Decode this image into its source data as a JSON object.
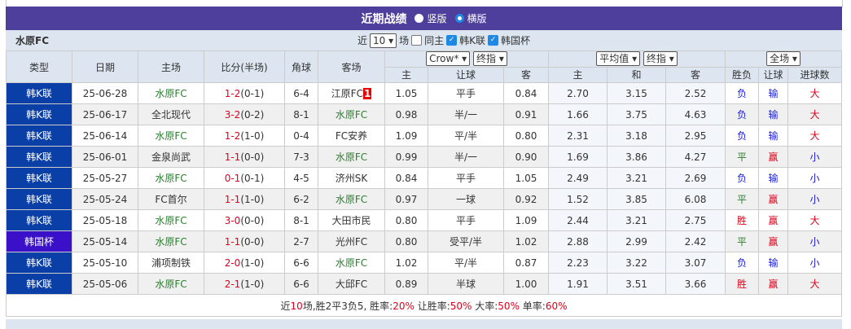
{
  "title": "近期战绩",
  "layout_options": [
    {
      "label": "竖版",
      "selected": false
    },
    {
      "label": "横版",
      "selected": true
    }
  ],
  "team": "水原FC",
  "filter": {
    "prefix": "近",
    "count": "10",
    "suffix": "场",
    "checkboxes": [
      {
        "label": "同主",
        "checked": false
      },
      {
        "label": "韩K联",
        "checked": true
      },
      {
        "label": "韩国杯",
        "checked": true
      }
    ]
  },
  "selects": {
    "company": "Crow*",
    "asian_type": "终指",
    "euro_company": "平均值",
    "euro_type": "终指",
    "period": "全场"
  },
  "headers": {
    "type": "类型",
    "date": "日期",
    "home": "主场",
    "score": "比分(半场)",
    "corner": "角球",
    "away": "客场",
    "a_home": "主",
    "a_line": "让球",
    "a_away": "客",
    "e_home": "主",
    "e_draw": "和",
    "e_away": "客",
    "result": "胜负",
    "handicap": "让球",
    "goals": "进球数"
  },
  "colors": {
    "title_bg": "#4e3f9c",
    "league_bg": "#0b3fa8",
    "cup_bg": "#3a10c8"
  },
  "rows": [
    {
      "type": "韩K联",
      "date": "25-06-28",
      "home": "水原FC",
      "score": "1-2",
      "half": "(0-1)",
      "corner": "6-4",
      "away": "江原FC",
      "away_flag": "1",
      "ah": "1.05",
      "al": "平手",
      "aa": "0.84",
      "eh": "2.70",
      "ed": "3.15",
      "ea": "2.52",
      "res": "负",
      "hc": "输",
      "gl": "大"
    },
    {
      "type": "韩K联",
      "date": "25-06-17",
      "home": "全北现代",
      "score": "3-2",
      "half": "(0-2)",
      "corner": "8-1",
      "away": "水原FC",
      "ah": "0.98",
      "al": "半/一",
      "aa": "0.91",
      "eh": "1.66",
      "ed": "3.75",
      "ea": "4.63",
      "res": "负",
      "hc": "输",
      "gl": "大"
    },
    {
      "type": "韩K联",
      "date": "25-06-14",
      "home": "水原FC",
      "score": "1-2",
      "half": "(1-0)",
      "corner": "0-4",
      "away": "FC安养",
      "ah": "1.09",
      "al": "平/半",
      "aa": "0.80",
      "eh": "2.31",
      "ed": "3.18",
      "ea": "2.95",
      "res": "负",
      "hc": "输",
      "gl": "大"
    },
    {
      "type": "韩K联",
      "date": "25-06-01",
      "home": "金泉尚武",
      "score": "1-1",
      "half": "(0-0)",
      "corner": "7-3",
      "away": "水原FC",
      "ah": "0.99",
      "al": "半/一",
      "aa": "0.90",
      "eh": "1.69",
      "ed": "3.86",
      "ea": "4.27",
      "res": "平",
      "hc": "赢",
      "gl": "小"
    },
    {
      "type": "韩K联",
      "date": "25-05-27",
      "home": "水原FC",
      "score": "0-1",
      "half": "(0-1)",
      "corner": "4-5",
      "away": "济州SK",
      "ah": "0.84",
      "al": "平手",
      "aa": "1.05",
      "eh": "2.49",
      "ed": "3.21",
      "ea": "2.69",
      "res": "负",
      "hc": "输",
      "gl": "小"
    },
    {
      "type": "韩K联",
      "date": "25-05-24",
      "home": "FC首尔",
      "score": "1-1",
      "half": "(1-0)",
      "corner": "6-2",
      "away": "水原FC",
      "ah": "0.97",
      "al": "一球",
      "aa": "0.92",
      "eh": "1.52",
      "ed": "3.85",
      "ea": "6.08",
      "res": "平",
      "hc": "赢",
      "gl": "小"
    },
    {
      "type": "韩K联",
      "date": "25-05-18",
      "home": "水原FC",
      "score": "3-0",
      "half": "(0-0)",
      "corner": "8-1",
      "away": "大田市民",
      "ah": "0.80",
      "al": "平手",
      "aa": "1.09",
      "eh": "2.44",
      "ed": "3.21",
      "ea": "2.75",
      "res": "胜",
      "hc": "赢",
      "gl": "大"
    },
    {
      "type": "韩国杯",
      "date": "25-05-14",
      "home": "水原FC",
      "score": "1-1",
      "half": "(0-0)",
      "corner": "2-7",
      "away": "光州FC",
      "ah": "0.80",
      "al": "受平/半",
      "aa": "1.02",
      "eh": "2.88",
      "ed": "2.99",
      "ea": "2.42",
      "res": "平",
      "hc": "赢",
      "gl": "小"
    },
    {
      "type": "韩K联",
      "date": "25-05-10",
      "home": "浦项制铁",
      "score": "2-0",
      "half": "(1-0)",
      "corner": "6-6",
      "away": "水原FC",
      "ah": "1.02",
      "al": "平/半",
      "aa": "0.87",
      "eh": "2.23",
      "ed": "3.22",
      "ea": "3.07",
      "res": "负",
      "hc": "输",
      "gl": "小"
    },
    {
      "type": "韩K联",
      "date": "25-05-06",
      "home": "水原FC",
      "score": "2-1",
      "half": "(1-0)",
      "corner": "6-6",
      "away": "大邱FC",
      "ah": "0.89",
      "al": "半球",
      "aa": "1.00",
      "eh": "1.91",
      "ed": "3.51",
      "ea": "3.66",
      "res": "胜",
      "hc": "赢",
      "gl": "大"
    }
  ],
  "summary": {
    "p1": "近",
    "n": "10",
    "p2": "场,胜2平3负5, 胜率:",
    "win": "20%",
    "p3": " 让胜率:",
    "hwin": "50%",
    "p4": " 大率:",
    "big": "50%",
    "p5": " 单率:",
    "odd": "60%"
  }
}
